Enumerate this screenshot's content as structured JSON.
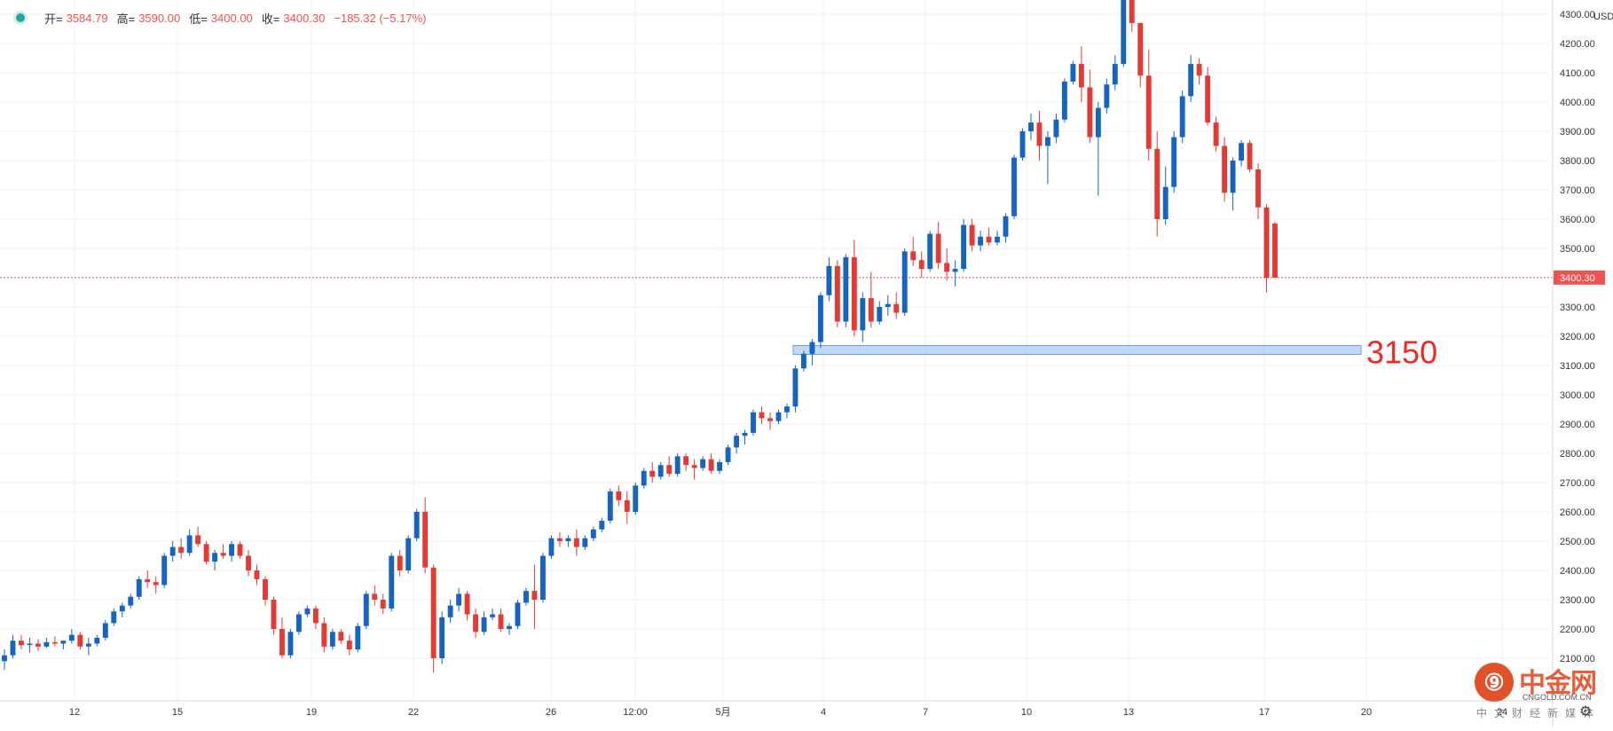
{
  "legend": {
    "open_label": "开=",
    "open_value": "3584.79",
    "high_label": "高=",
    "high_value": "3590.00",
    "low_label": "低=",
    "low_value": "3400.00",
    "close_label": "收=",
    "close_value": "3400.30",
    "change_value": "−185.32 (−5.17%)"
  },
  "currency": "USD",
  "last_price_label": "3400.30",
  "annotation_text": "3150",
  "watermark": {
    "cn": "中金网",
    "url": "CNGOLD.COM.CN",
    "sub": "中文财经新媒体"
  },
  "colors": {
    "up": "#1565c0",
    "down": "#e53935",
    "last_price": "#ef5350",
    "support_band": "#90b8ee",
    "annotation": "#ee2a24"
  },
  "chart_data": {
    "type": "candlestick",
    "title": "",
    "currency": "USD",
    "last_price": 3400.3,
    "support_level": 3150,
    "y_range": [
      1990,
      4410
    ],
    "y_ticks": [
      2100,
      2200,
      2300,
      2400,
      2500,
      2600,
      2700,
      2800,
      2900,
      3000,
      3100,
      3200,
      3300,
      3400,
      3500,
      3600,
      3700,
      3800,
      3900,
      4000,
      4100,
      4200,
      4300
    ],
    "y_tick_labels": [
      "2100.00",
      "2200.00",
      "2300.00",
      "2400.00",
      "2500.00",
      "2600.00",
      "2700.00",
      "2800.00",
      "2900.00",
      "3000.00",
      "3100.00",
      "3200.00",
      "3300.00",
      "3400.00",
      "3500.00",
      "3600.00",
      "3700.00",
      "3800.00",
      "3900.00",
      "4000.00",
      "4100.00",
      "4200.00",
      "4300.00"
    ],
    "x_labels": [
      "12",
      "15",
      "19",
      "22",
      "26",
      "12:00",
      "5月",
      "4",
      "7",
      "10",
      "13",
      "17",
      "20",
      "24"
    ],
    "grid": true,
    "candles_approx_ohlc": [
      [
        2090,
        2130,
        2060,
        2110
      ],
      [
        2110,
        2180,
        2100,
        2160
      ],
      [
        2160,
        2180,
        2130,
        2145
      ],
      [
        2145,
        2170,
        2120,
        2150
      ],
      [
        2150,
        2165,
        2125,
        2140
      ],
      [
        2140,
        2170,
        2135,
        2155
      ],
      [
        2155,
        2175,
        2140,
        2150
      ],
      [
        2150,
        2160,
        2130,
        2160
      ],
      [
        2160,
        2200,
        2150,
        2180
      ],
      [
        2180,
        2190,
        2130,
        2140
      ],
      [
        2140,
        2170,
        2110,
        2150
      ],
      [
        2150,
        2180,
        2140,
        2170
      ],
      [
        2170,
        2230,
        2160,
        2220
      ],
      [
        2220,
        2270,
        2210,
        2260
      ],
      [
        2260,
        2290,
        2240,
        2280
      ],
      [
        2280,
        2320,
        2270,
        2310
      ],
      [
        2310,
        2380,
        2300,
        2370
      ],
      [
        2370,
        2400,
        2340,
        2360
      ],
      [
        2360,
        2380,
        2320,
        2350
      ],
      [
        2350,
        2460,
        2340,
        2450
      ],
      [
        2450,
        2500,
        2430,
        2480
      ],
      [
        2480,
        2510,
        2440,
        2460
      ],
      [
        2460,
        2540,
        2450,
        2520
      ],
      [
        2520,
        2550,
        2480,
        2490
      ],
      [
        2490,
        2500,
        2420,
        2430
      ],
      [
        2430,
        2470,
        2400,
        2460
      ],
      [
        2460,
        2490,
        2440,
        2450
      ],
      [
        2450,
        2500,
        2430,
        2490
      ],
      [
        2490,
        2500,
        2440,
        2450
      ],
      [
        2450,
        2470,
        2380,
        2400
      ],
      [
        2400,
        2420,
        2350,
        2370
      ],
      [
        2370,
        2380,
        2280,
        2300
      ],
      [
        2300,
        2310,
        2180,
        2200
      ],
      [
        2200,
        2240,
        2100,
        2110
      ],
      [
        2110,
        2200,
        2100,
        2190
      ],
      [
        2190,
        2260,
        2180,
        2250
      ],
      [
        2250,
        2280,
        2240,
        2270
      ],
      [
        2270,
        2280,
        2200,
        2220
      ],
      [
        2220,
        2240,
        2120,
        2140
      ],
      [
        2140,
        2200,
        2130,
        2190
      ],
      [
        2190,
        2200,
        2150,
        2160
      ],
      [
        2160,
        2180,
        2110,
        2130
      ],
      [
        2130,
        2220,
        2120,
        2210
      ],
      [
        2210,
        2330,
        2200,
        2320
      ],
      [
        2320,
        2350,
        2280,
        2300
      ],
      [
        2300,
        2320,
        2250,
        2270
      ],
      [
        2270,
        2460,
        2260,
        2450
      ],
      [
        2450,
        2470,
        2380,
        2400
      ],
      [
        2400,
        2520,
        2390,
        2510
      ],
      [
        2510,
        2610,
        2500,
        2600
      ],
      [
        2600,
        2650,
        2390,
        2410
      ],
      [
        2410,
        2420,
        2050,
        2100
      ],
      [
        2100,
        2260,
        2080,
        2240
      ],
      [
        2240,
        2300,
        2220,
        2280
      ],
      [
        2280,
        2340,
        2260,
        2320
      ],
      [
        2320,
        2330,
        2230,
        2250
      ],
      [
        2250,
        2270,
        2170,
        2190
      ],
      [
        2190,
        2260,
        2180,
        2240
      ],
      [
        2240,
        2270,
        2230,
        2250
      ],
      [
        2250,
        2270,
        2190,
        2200
      ],
      [
        2200,
        2220,
        2180,
        2210
      ],
      [
        2210,
        2300,
        2200,
        2290
      ],
      [
        2290,
        2340,
        2280,
        2330
      ],
      [
        2330,
        2420,
        2200,
        2300
      ],
      [
        2300,
        2460,
        2290,
        2450
      ],
      [
        2450,
        2520,
        2440,
        2510
      ],
      [
        2510,
        2530,
        2480,
        2500
      ],
      [
        2500,
        2520,
        2480,
        2510
      ],
      [
        2510,
        2540,
        2450,
        2480
      ],
      [
        2480,
        2520,
        2470,
        2510
      ],
      [
        2510,
        2550,
        2500,
        2540
      ],
      [
        2540,
        2580,
        2530,
        2570
      ],
      [
        2570,
        2680,
        2560,
        2670
      ],
      [
        2670,
        2690,
        2620,
        2640
      ],
      [
        2640,
        2670,
        2560,
        2600
      ],
      [
        2600,
        2700,
        2590,
        2690
      ],
      [
        2690,
        2750,
        2680,
        2740
      ],
      [
        2740,
        2770,
        2700,
        2720
      ],
      [
        2720,
        2770,
        2710,
        2760
      ],
      [
        2760,
        2790,
        2720,
        2730
      ],
      [
        2730,
        2800,
        2720,
        2790
      ],
      [
        2790,
        2800,
        2740,
        2760
      ],
      [
        2760,
        2780,
        2710,
        2750
      ],
      [
        2750,
        2790,
        2740,
        2780
      ],
      [
        2780,
        2800,
        2730,
        2740
      ],
      [
        2740,
        2780,
        2730,
        2770
      ],
      [
        2770,
        2830,
        2760,
        2820
      ],
      [
        2820,
        2870,
        2800,
        2860
      ],
      [
        2860,
        2880,
        2830,
        2870
      ],
      [
        2870,
        2950,
        2860,
        2940
      ],
      [
        2940,
        2960,
        2900,
        2920
      ],
      [
        2920,
        2940,
        2880,
        2910
      ],
      [
        2910,
        2950,
        2900,
        2940
      ],
      [
        2940,
        2970,
        2920,
        2960
      ],
      [
        2960,
        3100,
        2940,
        3090
      ],
      [
        3090,
        3150,
        3080,
        3140
      ],
      [
        3140,
        3190,
        3100,
        3180
      ],
      [
        3180,
        3350,
        3160,
        3340
      ],
      [
        3340,
        3470,
        3320,
        3440
      ],
      [
        3440,
        3460,
        3230,
        3250
      ],
      [
        3250,
        3480,
        3230,
        3470
      ],
      [
        3470,
        3530,
        3200,
        3220
      ],
      [
        3220,
        3350,
        3180,
        3330
      ],
      [
        3330,
        3420,
        3230,
        3250
      ],
      [
        3250,
        3320,
        3240,
        3300
      ],
      [
        3300,
        3340,
        3270,
        3310
      ],
      [
        3310,
        3350,
        3260,
        3280
      ],
      [
        3280,
        3500,
        3270,
        3490
      ],
      [
        3490,
        3540,
        3440,
        3460
      ],
      [
        3460,
        3490,
        3400,
        3430
      ],
      [
        3430,
        3560,
        3420,
        3550
      ],
      [
        3550,
        3590,
        3430,
        3450
      ],
      [
        3450,
        3500,
        3390,
        3420
      ],
      [
        3420,
        3460,
        3370,
        3430
      ],
      [
        3430,
        3600,
        3420,
        3580
      ],
      [
        3580,
        3600,
        3490,
        3510
      ],
      [
        3510,
        3560,
        3490,
        3540
      ],
      [
        3540,
        3570,
        3510,
        3520
      ],
      [
        3520,
        3560,
        3510,
        3540
      ],
      [
        3540,
        3620,
        3520,
        3610
      ],
      [
        3610,
        3820,
        3600,
        3810
      ],
      [
        3810,
        3910,
        3800,
        3900
      ],
      [
        3900,
        3960,
        3870,
        3930
      ],
      [
        3930,
        3970,
        3800,
        3850
      ],
      [
        3850,
        3900,
        3720,
        3880
      ],
      [
        3880,
        3960,
        3860,
        3940
      ],
      [
        3940,
        4080,
        3930,
        4070
      ],
      [
        4070,
        4140,
        4060,
        4130
      ],
      [
        4130,
        4190,
        4000,
        4050
      ],
      [
        4050,
        4110,
        3860,
        3880
      ],
      [
        3880,
        4000,
        3680,
        3980
      ],
      [
        3980,
        4080,
        3960,
        4060
      ],
      [
        4060,
        4160,
        4040,
        4130
      ],
      [
        4130,
        4390,
        4120,
        4370
      ],
      [
        4370,
        4380,
        4240,
        4270
      ],
      [
        4270,
        4270,
        4050,
        4090
      ],
      [
        4090,
        4180,
        3800,
        3840
      ],
      [
        3840,
        3900,
        3540,
        3600
      ],
      [
        3600,
        3780,
        3580,
        3710
      ],
      [
        3710,
        3900,
        3690,
        3880
      ],
      [
        3880,
        4040,
        3860,
        4020
      ],
      [
        4020,
        4160,
        4000,
        4130
      ],
      [
        4130,
        4150,
        4060,
        4090
      ],
      [
        4090,
        4120,
        3920,
        3930
      ],
      [
        3930,
        3950,
        3830,
        3850
      ],
      [
        3850,
        3880,
        3660,
        3690
      ],
      [
        3690,
        3810,
        3630,
        3800
      ],
      [
        3800,
        3870,
        3780,
        3860
      ],
      [
        3860,
        3870,
        3760,
        3770
      ],
      [
        3770,
        3790,
        3600,
        3640
      ],
      [
        3640,
        3650,
        3350,
        3400
      ],
      [
        3584.79,
        3590.0,
        3400.0,
        3400.3
      ]
    ]
  }
}
